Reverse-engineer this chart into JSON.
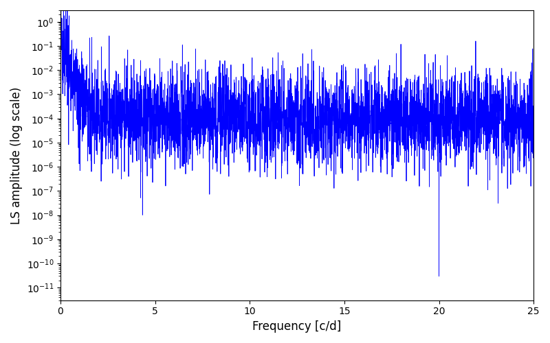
{
  "xlabel": "Frequency [c/d]",
  "ylabel": "LS amplitude (log scale)",
  "xlim": [
    0,
    25
  ],
  "ylim": [
    3e-12,
    3.0
  ],
  "line_color": "#0000ff",
  "line_width": 0.6,
  "background_color": "#ffffff",
  "seed": 7777,
  "n_points": 4000,
  "freq_max": 25.0,
  "initial_peak_amp": 0.68,
  "initial_peak_freq": 0.35,
  "noise_floor_log10": -4.0,
  "envelope_decay": 1.4,
  "noise_std_log10": 1.0,
  "deep_null_freq": 20.0,
  "deep_null_val": 3e-11,
  "figsize": [
    8.0,
    5.0
  ],
  "dpi": 100
}
